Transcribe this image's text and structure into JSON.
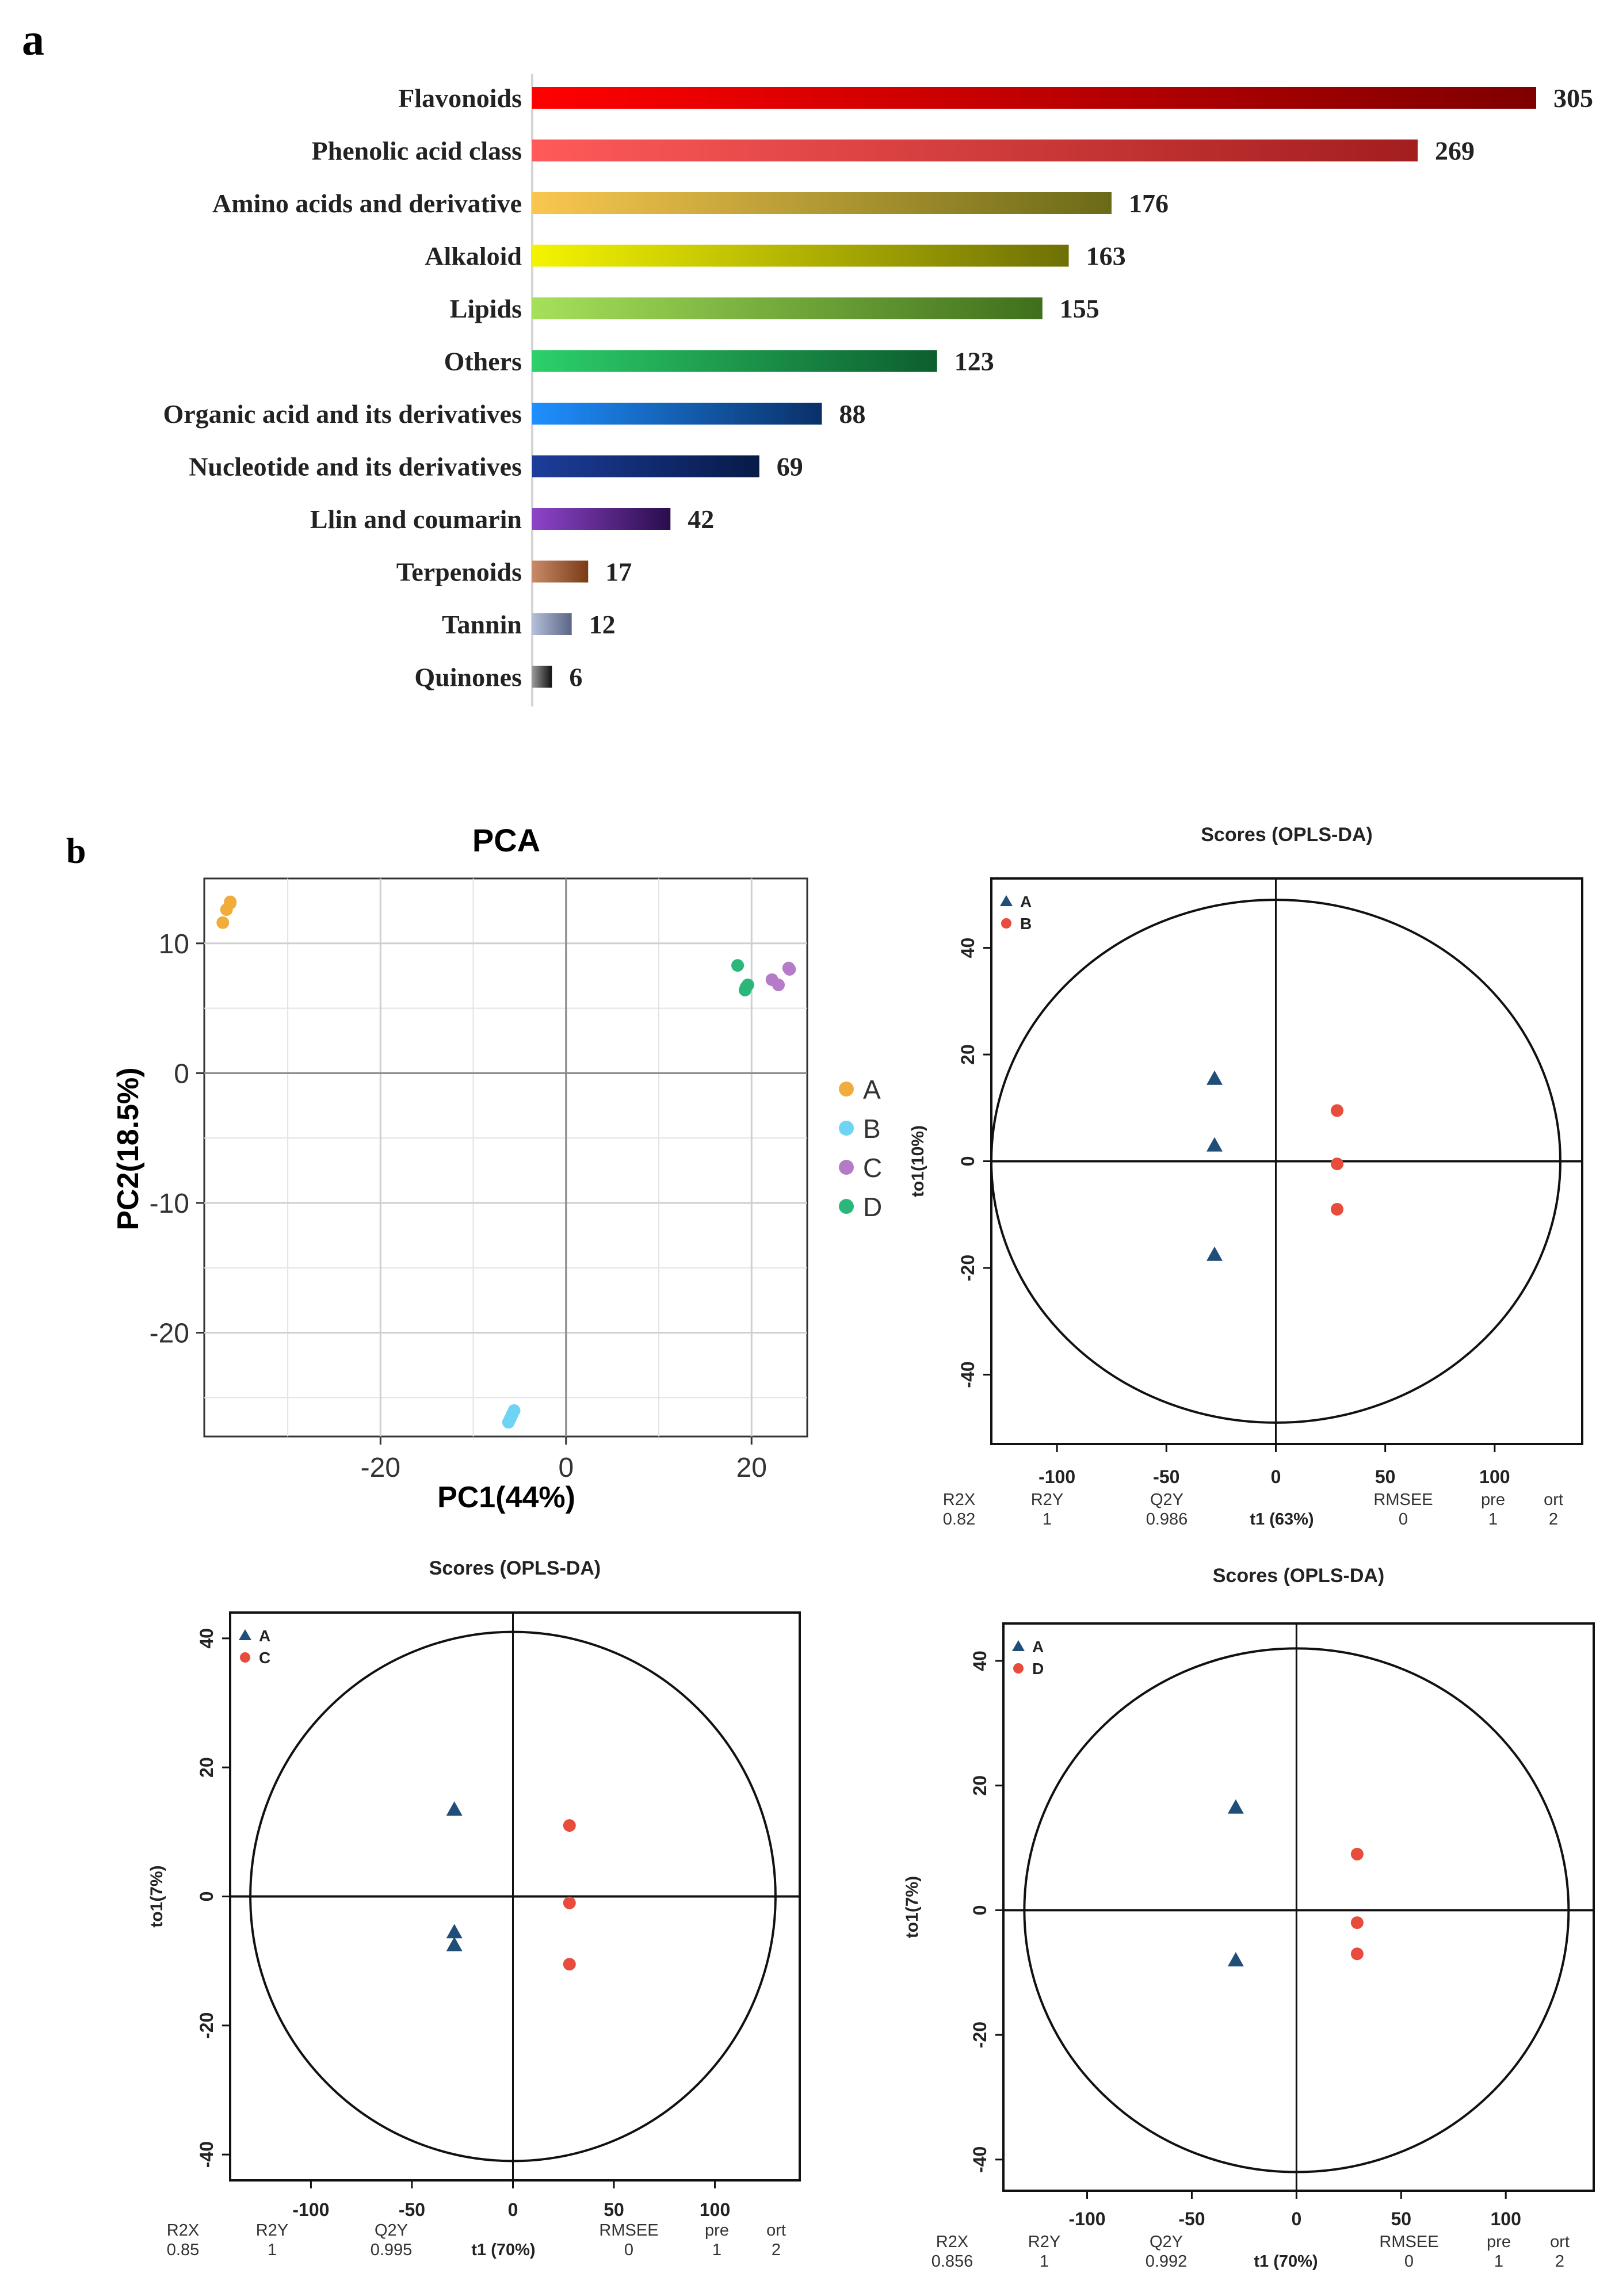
{
  "panels": {
    "a_label": "a",
    "b_label": "b"
  },
  "chart_data": [
    {
      "type": "bar",
      "orientation": "horizontal",
      "panel": "a",
      "title": "",
      "categories": [
        "Flavonoids",
        "Phenolic acid class",
        "Amino acids and derivative",
        "Alkaloid",
        "Lipids",
        "Others",
        "Organic acid and its derivatives",
        "Nucleotide and its derivatives",
        "Llin and coumarin",
        "Terpenoids",
        "Tannin",
        "Quinones"
      ],
      "values": [
        305,
        269,
        176,
        163,
        155,
        123,
        88,
        69,
        42,
        17,
        12,
        6
      ],
      "colors": [
        [
          "#ff0000",
          "#7f0000"
        ],
        [
          "#ff5a5a",
          "#a31e1e"
        ],
        [
          "#f9c74f",
          "#6b6a18"
        ],
        [
          "#f4f400",
          "#6e7005"
        ],
        [
          "#a6e05a",
          "#3f6f1c"
        ],
        [
          "#2cd06a",
          "#0d5e2e"
        ],
        [
          "#1e90ff",
          "#0a3068"
        ],
        [
          "#1c3d9a",
          "#071a48"
        ],
        [
          "#8e44c9",
          "#2a0d4d"
        ],
        [
          "#c98a68",
          "#7a3a16"
        ],
        [
          "#b4bfd9",
          "#5b6585"
        ],
        [
          "#9a9a9a",
          "#111111"
        ]
      ],
      "xlim": [
        0,
        305
      ]
    },
    {
      "type": "scatter",
      "panel": "b-pca",
      "title": "PCA",
      "xlabel": "PC1(44%)",
      "ylabel": "PC2(18.5%)",
      "xlim": [
        -39,
        26
      ],
      "ylim": [
        -28,
        15
      ],
      "xticks": [
        "-20",
        "0",
        "20"
      ],
      "yticks": [
        "10",
        "0",
        "-10",
        "-20"
      ],
      "xtick_values": [
        -20,
        0,
        20
      ],
      "ytick_values": [
        10,
        0,
        -10,
        -20
      ],
      "series": [
        {
          "name": "A",
          "color": "#f0ad3c",
          "x": [
            -37,
            -36.6,
            -36.2,
            -36.2
          ],
          "y": [
            11.6,
            12.6,
            13.2,
            13.1
          ]
        },
        {
          "name": "B",
          "color": "#6fd3f4",
          "x": [
            -6.2,
            -6,
            -5.8,
            -5.6
          ],
          "y": [
            -26.9,
            -26.6,
            -26.3,
            -26.0
          ]
        },
        {
          "name": "C",
          "color": "#b57ac8",
          "x": [
            22.2,
            22.9,
            24.1,
            24.0
          ],
          "y": [
            7.2,
            6.8,
            8.0,
            8.1
          ]
        },
        {
          "name": "D",
          "color": "#2bb77a",
          "x": [
            18.5,
            19.4,
            19.6,
            19.3
          ],
          "y": [
            8.3,
            6.6,
            6.8,
            6.4
          ]
        }
      ],
      "legend": [
        "A",
        "B",
        "C",
        "D"
      ]
    },
    {
      "type": "scatter",
      "panel": "b-oplsda-AB",
      "title": "Scores (OPLS-DA)",
      "xlabel": "t1 (63%)",
      "ylabel": "to1(10%)",
      "xlim": [
        -130,
        140
      ],
      "ylim": [
        -53,
        53
      ],
      "xticks": [
        "-100",
        "-50",
        "0",
        "50",
        "100"
      ],
      "yticks": [
        "40",
        "20",
        "0",
        "-20",
        "-40"
      ],
      "xtick_values": [
        -100,
        -50,
        0,
        50,
        100
      ],
      "ytick_values": [
        40,
        20,
        0,
        -20,
        -40
      ],
      "ellipse": {
        "rx": 130,
        "ry": 49
      },
      "series": [
        {
          "name": "A",
          "marker": "triangle",
          "color": "#1f4e79",
          "x": [
            -28,
            -28,
            -28
          ],
          "y": [
            15.5,
            3,
            -17.5
          ]
        },
        {
          "name": "B",
          "marker": "circle",
          "color": "#e74c3c",
          "x": [
            28,
            28,
            28
          ],
          "y": [
            9.5,
            -0.5,
            -9
          ]
        }
      ],
      "stats": {
        "headers": [
          "R2X",
          "R2Y",
          "Q2Y",
          "",
          "RMSEE",
          "pre",
          "ort"
        ],
        "values": [
          "0.82",
          "1",
          "0.986",
          "",
          "0",
          "1",
          "2"
        ]
      }
    },
    {
      "type": "scatter",
      "panel": "b-oplsda-AC",
      "title": "Scores (OPLS-DA)",
      "xlabel": "t1 (70%)",
      "ylabel": "to1(7%)",
      "xlim": [
        -140,
        142
      ],
      "ylim": [
        -44,
        44
      ],
      "xticks": [
        "-100",
        "-50",
        "0",
        "50",
        "100"
      ],
      "yticks": [
        "40",
        "20",
        "0",
        "-20",
        "-40"
      ],
      "xtick_values": [
        -100,
        -50,
        0,
        50,
        100
      ],
      "ytick_values": [
        40,
        20,
        0,
        -20,
        -40
      ],
      "ellipse": {
        "rx": 130,
        "ry": 41
      },
      "series": [
        {
          "name": "A",
          "marker": "triangle",
          "color": "#1f4e79",
          "x": [
            -29,
            -29,
            -29
          ],
          "y": [
            13.5,
            -5.5,
            -7.5
          ]
        },
        {
          "name": "C",
          "marker": "circle",
          "color": "#e74c3c",
          "x": [
            28,
            28,
            28
          ],
          "y": [
            11,
            -1,
            -10.5
          ]
        }
      ],
      "stats": {
        "headers": [
          "R2X",
          "R2Y",
          "Q2Y",
          "",
          "RMSEE",
          "pre",
          "ort"
        ],
        "values": [
          "0.85",
          "1",
          "0.995",
          "",
          "0",
          "1",
          "2"
        ]
      }
    },
    {
      "type": "scatter",
      "panel": "b-oplsda-AD",
      "title": "Scores (OPLS-DA)",
      "xlabel": "t1 (70%)",
      "ylabel": "to1(7%)",
      "xlim": [
        -140,
        142
      ],
      "ylim": [
        -45,
        46
      ],
      "xticks": [
        "-100",
        "-50",
        "0",
        "50",
        "100"
      ],
      "yticks": [
        "40",
        "20",
        "0",
        "-20",
        "-40"
      ],
      "xtick_values": [
        -100,
        -50,
        0,
        50,
        100
      ],
      "ytick_values": [
        40,
        20,
        0,
        -20,
        -40
      ],
      "ellipse": {
        "rx": 130,
        "ry": 42
      },
      "series": [
        {
          "name": "A",
          "marker": "triangle",
          "color": "#1f4e79",
          "x": [
            -29,
            -29
          ],
          "y": [
            16.5,
            -8
          ]
        },
        {
          "name": "D",
          "marker": "circle",
          "color": "#e74c3c",
          "x": [
            29,
            29,
            29
          ],
          "y": [
            9,
            -2,
            -7
          ]
        }
      ],
      "stats": {
        "headers": [
          "R2X",
          "R2Y",
          "Q2Y",
          "",
          "RMSEE",
          "pre",
          "ort"
        ],
        "values": [
          "0.856",
          "1",
          "0.992",
          "",
          "0",
          "1",
          "2"
        ]
      }
    }
  ]
}
